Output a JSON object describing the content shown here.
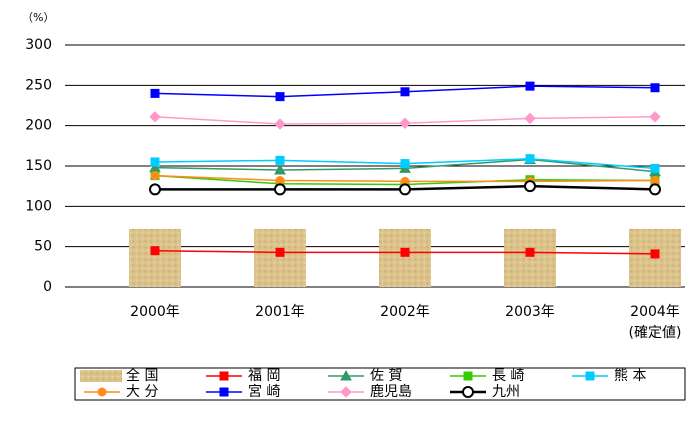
{
  "chart_data": {
    "type": "line",
    "unit_label": "（%）",
    "categories": [
      "2000年",
      "2001年",
      "2002年",
      "2003年",
      "2004年"
    ],
    "category_note": "(確定値)",
    "ylim": [
      0,
      300
    ],
    "yticks": [
      0,
      50,
      100,
      150,
      200,
      250,
      300
    ],
    "grid": true,
    "series": [
      {
        "name": "全 国",
        "kind": "bar",
        "color": "#dcc38c",
        "values": [
          72,
          72,
          72,
          72,
          72
        ]
      },
      {
        "name": "福 岡",
        "kind": "line",
        "marker": "square",
        "color": "#ff0000",
        "values": [
          45,
          43,
          43,
          43,
          41
        ]
      },
      {
        "name": "佐 賀",
        "kind": "line",
        "marker": "triangle",
        "color": "#339966",
        "values": [
          148,
          145,
          147,
          158,
          143
        ]
      },
      {
        "name": "長 崎",
        "kind": "line",
        "marker": "square",
        "color": "#33cc00",
        "values": [
          138,
          128,
          127,
          133,
          132
        ]
      },
      {
        "name": "熊 本",
        "kind": "line",
        "marker": "square",
        "color": "#00ccff",
        "values": [
          155,
          157,
          153,
          159,
          147
        ]
      },
      {
        "name": "大 分",
        "kind": "line",
        "marker": "circle",
        "color": "#ff8c1a",
        "values": [
          138,
          132,
          131,
          131,
          132
        ]
      },
      {
        "name": "宮 崎",
        "kind": "line",
        "marker": "square",
        "color": "#0000ff",
        "values": [
          240,
          236,
          242,
          249,
          247
        ]
      },
      {
        "name": "鹿児島",
        "kind": "line",
        "marker": "diamond",
        "color": "#ff99cc",
        "values": [
          211,
          202,
          203,
          209,
          211
        ]
      },
      {
        "name": "九州",
        "kind": "line",
        "marker": "open-circle",
        "color": "#000000",
        "values": [
          121,
          121,
          121,
          125,
          121
        ]
      }
    ]
  }
}
